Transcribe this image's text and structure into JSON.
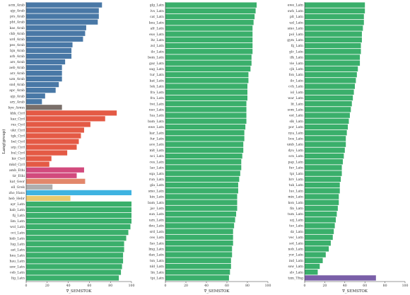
{
  "chart_data": [
    {
      "type": "bar",
      "orientation": "horizontal",
      "xlabel": "∇_SEMSTOK",
      "ylabel": "Lang(group)",
      "xlim": [
        0,
        100
      ],
      "xticks": [
        0,
        20,
        40,
        60,
        80,
        100
      ],
      "grid": false,
      "categories": [
        "acm_Arab",
        "ajp_Arab",
        "prs_Arab",
        "pbt_Arab",
        "kas_Arab",
        "ckb_Arab",
        "urd_Arab",
        "pes_Arab",
        "bjn_Arab",
        "arb_Arab",
        "ars_Arab",
        "aeb_Arab",
        "arz_Arab",
        "uzn_Arab",
        "snd_Arab",
        "apc_Arab",
        "ajp_Arab",
        "ary_Arab",
        "hye_Armn",
        "khk_Cyrl",
        "kaz_Cyrl",
        "rus_Cyrl",
        "ukr_Cyrl",
        "tgk_Cyrl",
        "bel_Cyrl",
        "srp_Cyrl",
        "bul_Cyrl",
        "kir_Cyrl",
        "mkd_Cyrl",
        "amh_Ethi",
        "tir_Ethi",
        "kat_Geor",
        "ell_Grek",
        "zho_Hans",
        "heb_Hebr",
        "ayr_Latn",
        "kab_Latn",
        "fij_Latn",
        "lim_Latn",
        "wol_Latn",
        "oci_Latn",
        "knb_Latn",
        "lug_Latn",
        "ast_Latn",
        "kea_Latn",
        "hau_Latn",
        "ssw_Latn",
        "ceb_Latn",
        "ltg_Latn"
      ],
      "values": [
        72,
        69,
        69,
        68,
        57,
        56,
        54,
        44,
        43,
        43,
        37,
        34,
        34,
        34,
        31,
        28,
        18,
        15,
        34,
        86,
        75,
        61,
        55,
        52,
        50,
        48,
        39,
        24,
        22,
        55,
        48,
        56,
        25,
        100,
        42,
        100,
        100,
        100,
        100,
        99,
        97,
        95,
        93,
        93,
        92,
        92,
        91,
        90,
        88
      ],
      "colors": [
        "#4978a6",
        "#4978a6",
        "#4978a6",
        "#4978a6",
        "#4978a6",
        "#4978a6",
        "#4978a6",
        "#4978a6",
        "#4978a6",
        "#4978a6",
        "#4978a6",
        "#4978a6",
        "#4978a6",
        "#4978a6",
        "#4978a6",
        "#4978a6",
        "#4978a6",
        "#4978a6",
        "#7a6f6a",
        "#e45a45",
        "#e45a45",
        "#e45a45",
        "#e45a45",
        "#e45a45",
        "#e45a45",
        "#e45a45",
        "#e45a45",
        "#e45a45",
        "#e45a45",
        "#d24a7d",
        "#d24a7d",
        "#e2876b",
        "#aeaeae",
        "#3fb3e1",
        "#e8ca6e",
        "#3aaf6b",
        "#3aaf6b",
        "#3aaf6b",
        "#3aaf6b",
        "#3aaf6b",
        "#3aaf6b",
        "#3aaf6b",
        "#3aaf6b",
        "#3aaf6b",
        "#3aaf6b",
        "#3aaf6b",
        "#3aaf6b",
        "#3aaf6b",
        "#3aaf6b"
      ]
    },
    {
      "type": "bar",
      "orientation": "horizontal",
      "xlabel": "∇_SEMSTOK",
      "ylabel": "",
      "xlim": [
        0,
        100
      ],
      "xticks": [
        0,
        20,
        40,
        60,
        80,
        100
      ],
      "grid": false,
      "categories": [
        "glg_Latn",
        "lvs_Latn",
        "cat_Latn",
        "kea_Latn",
        "afr_Latn",
        "eus_Latn",
        "ltz_Latn",
        "zsl_Latn",
        "ilo_Latn",
        "bem_Latn",
        "gaz_Latn",
        "sag_Latn",
        "tur_Latn",
        "kat_Latn",
        "lek_Latn",
        "fra_Latn",
        "fra_Latn",
        "twi_Latn",
        "nso_Latn",
        "lua_Latn",
        "bam_Latn",
        "ewe_Latn",
        "kar_Latn",
        "fur_Latn",
        "ace_Latn",
        "mlt_Latn",
        "nci_Latn",
        "ces_Latn",
        "lao_Latn",
        "sqa_Latn",
        "run_Latn",
        "gla_Latn",
        "smo_Latn",
        "kin_Latn",
        "bam_Latn",
        "jav_Latn",
        "sun_Latn",
        "uzn_Latn",
        "deu_Latn",
        "srd_Latn",
        "ces_Latn",
        "fao_Latn",
        "lmg_Latn",
        "dan_Latn",
        "tsn_Latn",
        "nld_Latn",
        "lin_Latn",
        "tpi_Latn"
      ],
      "values": [
        89,
        88,
        87,
        86,
        85,
        85,
        85,
        85,
        85,
        84,
        84,
        83,
        81,
        81,
        80,
        80,
        80,
        79,
        79,
        79,
        79,
        78,
        77,
        77,
        76,
        76,
        75,
        74,
        74,
        73,
        72,
        71,
        71,
        70,
        70,
        70,
        69,
        68,
        67,
        66,
        66,
        66,
        65,
        65,
        64,
        64,
        63,
        62
      ],
      "colors": [
        "#3aaf6b"
      ]
    },
    {
      "type": "bar",
      "orientation": "horizontal",
      "xlabel": "∇_SEMSTOK",
      "ylabel": "",
      "xlim": [
        0,
        100
      ],
      "xticks": [
        0,
        20,
        40,
        60,
        80,
        100
      ],
      "grid": false,
      "categories": [
        "ewe_Latn",
        "swh_Latn",
        "plt_Latn",
        "uzl_Latn",
        "smo_Latn",
        "pol_Latn",
        "gym_Latn",
        "fij_Latn",
        "glc_Latn",
        "ifk_Latn",
        "vie_Latn",
        "cjk_Latn",
        "fon_Latn",
        "ilo_Latn",
        "cch_Latn",
        "isl_Latn",
        "war_Latn",
        "lit_Latn",
        "som_Latn",
        "est_Latn",
        "slk_Latn",
        "por_Latn",
        "nya_Latn",
        "bos_Latn",
        "umb_Latn",
        "dyu_Latn",
        "scn_Latn",
        "pap_Latn",
        "fuv_Latn",
        "tpi_Latn",
        "hrv_Latn",
        "tuk_Latn",
        "luo_Latn",
        "min_Latn",
        "kon_Latn",
        "fin_Latn",
        "tum_Latn",
        "szj_Latn",
        "tso_Latn",
        "dz_Latn",
        "vec_Latn",
        "sot_Latn",
        "nob_Latn",
        "yor_Latn",
        "ind_Latn",
        "ssw_Latn",
        "slv_Latn",
        "tzm_Tfng"
      ],
      "values": [
        60,
        60,
        59,
        59,
        58,
        57,
        57,
        56,
        56,
        55,
        55,
        53,
        52,
        51,
        50,
        49,
        48,
        47,
        46,
        45,
        44,
        43,
        42,
        41,
        41,
        40,
        39,
        38,
        37,
        37,
        36,
        35,
        35,
        34,
        34,
        33,
        32,
        31,
        30,
        29,
        28,
        26,
        24,
        21,
        18,
        15,
        13,
        71
      ],
      "colors": [
        "#3aaf6b",
        "#3aaf6b",
        "#3aaf6b",
        "#3aaf6b",
        "#3aaf6b",
        "#3aaf6b",
        "#3aaf6b",
        "#3aaf6b",
        "#3aaf6b",
        "#3aaf6b",
        "#3aaf6b",
        "#3aaf6b",
        "#3aaf6b",
        "#3aaf6b",
        "#3aaf6b",
        "#3aaf6b",
        "#3aaf6b",
        "#3aaf6b",
        "#3aaf6b",
        "#3aaf6b",
        "#3aaf6b",
        "#3aaf6b",
        "#3aaf6b",
        "#3aaf6b",
        "#3aaf6b",
        "#3aaf6b",
        "#3aaf6b",
        "#3aaf6b",
        "#3aaf6b",
        "#3aaf6b",
        "#3aaf6b",
        "#3aaf6b",
        "#3aaf6b",
        "#3aaf6b",
        "#3aaf6b",
        "#3aaf6b",
        "#3aaf6b",
        "#3aaf6b",
        "#3aaf6b",
        "#3aaf6b",
        "#3aaf6b",
        "#3aaf6b",
        "#3aaf6b",
        "#3aaf6b",
        "#3aaf6b",
        "#3aaf6b",
        "#3aaf6b",
        "#7a5fa8"
      ]
    }
  ]
}
